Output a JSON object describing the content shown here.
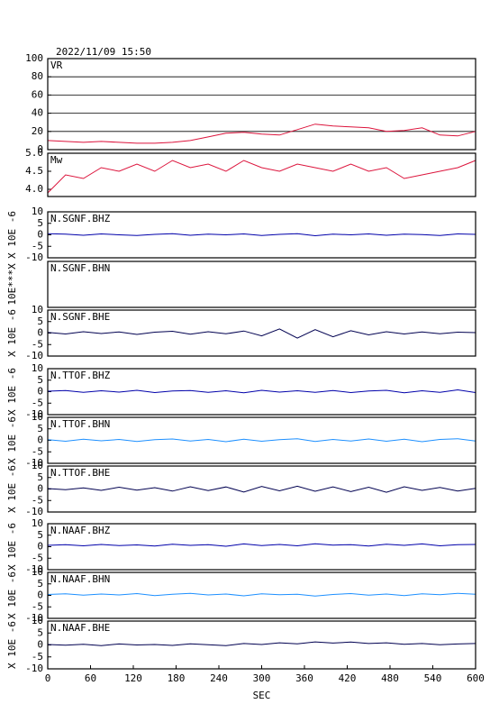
{
  "header": {
    "title": "2022/11/09  15:50"
  },
  "chart_data": [
    {
      "type": "line",
      "label": "VR",
      "ylim": [
        0,
        100
      ],
      "yticks": [
        0,
        20,
        40,
        60,
        80,
        100
      ],
      "grid": true,
      "color": "#dc143c",
      "xlim": [
        0,
        600
      ],
      "x": [
        0,
        25,
        50,
        75,
        100,
        125,
        150,
        175,
        200,
        225,
        250,
        275,
        300,
        325,
        350,
        375,
        400,
        425,
        450,
        475,
        500,
        525,
        550,
        575,
        600
      ],
      "values": [
        10,
        9,
        8,
        9,
        8,
        7,
        7,
        8,
        10,
        14,
        18,
        19,
        17,
        16,
        22,
        28,
        26,
        25,
        24,
        20,
        21,
        24,
        16,
        15,
        20
      ]
    },
    {
      "type": "line",
      "label": "Mw",
      "ylim": [
        3.8,
        5.0
      ],
      "yticks": [
        {
          "value": 4,
          "label": "4.0"
        },
        {
          "value": 4.5,
          "label": "4.5"
        },
        {
          "value": 5,
          "label": "5.0"
        }
      ],
      "grid": false,
      "color": "#dc143c",
      "xlim": [
        0,
        600
      ],
      "x": [
        0,
        25,
        50,
        75,
        100,
        125,
        150,
        175,
        200,
        225,
        250,
        275,
        300,
        325,
        350,
        375,
        400,
        425,
        450,
        475,
        500,
        525,
        550,
        575,
        600
      ],
      "values": [
        3.9,
        4.4,
        4.3,
        4.6,
        4.5,
        4.7,
        4.5,
        4.8,
        4.6,
        4.7,
        4.5,
        4.8,
        4.6,
        4.5,
        4.7,
        4.6,
        4.5,
        4.7,
        4.5,
        4.6,
        4.3,
        4.4,
        4.5,
        4.6,
        4.8
      ]
    },
    {
      "type": "line",
      "label": "N.SGNF.BHZ",
      "ylabel": "X 10E -6",
      "ylim": [
        -10,
        10
      ],
      "yticks": [
        -10,
        -5,
        0,
        5,
        10
      ],
      "color": "#0000aa",
      "xlim": [
        0,
        600
      ],
      "x": [
        0,
        25,
        50,
        75,
        100,
        125,
        150,
        175,
        200,
        225,
        250,
        275,
        300,
        325,
        350,
        375,
        400,
        425,
        450,
        475,
        500,
        525,
        550,
        575,
        600
      ],
      "values": [
        0.5,
        0.3,
        -0.2,
        0.4,
        0,
        -0.3,
        0.2,
        0.5,
        -0.2,
        0.3,
        0,
        0.4,
        -0.3,
        0.2,
        0.5,
        -0.4,
        0.3,
        0,
        0.4,
        -0.2,
        0.3,
        0.1,
        -0.3,
        0.4,
        0.2
      ]
    },
    {
      "type": "line",
      "label": "N.SGNF.BHN",
      "ylabel": "10E***X",
      "xlim": [
        0,
        600
      ]
    },
    {
      "type": "line",
      "label": "N.SGNF.BHE",
      "ylabel": "X 10E -6",
      "ylim": [
        -10,
        10
      ],
      "yticks": [
        -10,
        -5,
        0,
        5,
        10
      ],
      "color": "#000050",
      "xlim": [
        0,
        600
      ],
      "x": [
        0,
        25,
        50,
        75,
        100,
        125,
        150,
        175,
        200,
        225,
        250,
        275,
        300,
        325,
        350,
        375,
        400,
        425,
        450,
        475,
        500,
        525,
        550,
        575,
        600
      ],
      "values": [
        0.3,
        -0.4,
        0.6,
        -0.2,
        0.5,
        -0.6,
        0.4,
        0.8,
        -0.5,
        0.6,
        -0.3,
        0.9,
        -1.2,
        1.8,
        -2.2,
        1.5,
        -1.6,
        1.0,
        -0.8,
        0.6,
        -0.4,
        0.5,
        -0.3,
        0.4,
        0.2
      ]
    },
    {
      "type": "line",
      "label": "N.TTOF.BHZ",
      "ylabel": "X 10E -6",
      "ylim": [
        -10,
        10
      ],
      "yticks": [
        -10,
        -5,
        0,
        5,
        10
      ],
      "color": "#0000aa",
      "xlim": [
        0,
        600
      ],
      "x": [
        0,
        25,
        50,
        75,
        100,
        125,
        150,
        175,
        200,
        225,
        250,
        275,
        300,
        325,
        350,
        375,
        400,
        425,
        450,
        475,
        500,
        525,
        550,
        575,
        600
      ],
      "values": [
        0.2,
        0.5,
        -0.3,
        0.4,
        -0.2,
        0.6,
        -0.4,
        0.3,
        0.5,
        -0.3,
        0.4,
        -0.5,
        0.6,
        -0.2,
        0.4,
        -0.3,
        0.5,
        -0.4,
        0.3,
        0.6,
        -0.5,
        0.4,
        -0.3,
        0.8,
        -0.4
      ]
    },
    {
      "type": "line",
      "label": "N.TTOF.BHN",
      "ylabel": "X 10E -6",
      "ylim": [
        -10,
        10
      ],
      "yticks": [
        -10,
        -5,
        0,
        5,
        10
      ],
      "color": "#1e90ff",
      "xlim": [
        0,
        600
      ],
      "x": [
        0,
        25,
        50,
        75,
        100,
        125,
        150,
        175,
        200,
        225,
        250,
        275,
        300,
        325,
        350,
        375,
        400,
        425,
        450,
        475,
        500,
        525,
        550,
        575,
        600
      ],
      "values": [
        0.3,
        -0.4,
        0.5,
        -0.2,
        0.4,
        -0.5,
        0.3,
        0.6,
        -0.3,
        0.4,
        -0.6,
        0.5,
        -0.4,
        0.3,
        0.7,
        -0.5,
        0.4,
        -0.3,
        0.6,
        -0.4,
        0.5,
        -0.6,
        0.4,
        0.7,
        -0.3
      ]
    },
    {
      "type": "line",
      "label": "N.TTOF.BHE",
      "ylabel": "X 10E -6",
      "ylim": [
        -10,
        10
      ],
      "yticks": [
        -10,
        -5,
        0,
        5,
        10
      ],
      "color": "#000050",
      "xlim": [
        0,
        600
      ],
      "x": [
        0,
        25,
        50,
        75,
        100,
        125,
        150,
        175,
        200,
        225,
        250,
        275,
        300,
        325,
        350,
        375,
        400,
        425,
        450,
        475,
        500,
        525,
        550,
        575,
        600
      ],
      "values": [
        0.2,
        -0.3,
        0.5,
        -0.6,
        0.8,
        -0.5,
        0.6,
        -0.9,
        1.0,
        -0.7,
        0.9,
        -1.3,
        1.1,
        -0.8,
        1.2,
        -1.0,
        0.9,
        -1.1,
        0.8,
        -1.4,
        1.0,
        -0.6,
        0.7,
        -0.9,
        0.3
      ]
    },
    {
      "type": "line",
      "label": "N.NAAF.BHZ",
      "ylabel": "X 10E -6",
      "ylim": [
        -10,
        10
      ],
      "yticks": [
        -10,
        -5,
        0,
        5,
        10
      ],
      "color": "#0000aa",
      "xlim": [
        0,
        600
      ],
      "x": [
        0,
        25,
        50,
        75,
        100,
        125,
        150,
        175,
        200,
        225,
        250,
        275,
        300,
        325,
        350,
        375,
        400,
        425,
        450,
        475,
        500,
        525,
        550,
        575,
        600
      ],
      "values": [
        0.6,
        0.9,
        0.4,
        1.0,
        0.5,
        0.8,
        0.3,
        1.1,
        0.6,
        0.9,
        0.2,
        1.2,
        0.5,
        1.0,
        0.4,
        1.3,
        0.7,
        0.9,
        0.3,
        1.1,
        0.6,
        1.2,
        0.4,
        0.9,
        1.0
      ]
    },
    {
      "type": "line",
      "label": "N.NAAF.BHN",
      "ylabel": "X 10E -6",
      "ylim": [
        -10,
        10
      ],
      "yticks": [
        -10,
        -5,
        0,
        5,
        10
      ],
      "color": "#1e90ff",
      "xlim": [
        0,
        600
      ],
      "x": [
        0,
        25,
        50,
        75,
        100,
        125,
        150,
        175,
        200,
        225,
        250,
        275,
        300,
        325,
        350,
        375,
        400,
        425,
        450,
        475,
        500,
        525,
        550,
        575,
        600
      ],
      "values": [
        0.4,
        0.7,
        0.1,
        0.6,
        0.2,
        0.8,
        -0.1,
        0.5,
        0.9,
        0.2,
        0.6,
        -0.2,
        0.7,
        0.3,
        0.5,
        -0.3,
        0.4,
        0.8,
        0.1,
        0.6,
        -0.1,
        0.7,
        0.3,
        0.9,
        0.5
      ]
    },
    {
      "type": "line",
      "label": "N.NAAF.BHE",
      "ylabel": "X 10E -6",
      "ylim": [
        -10,
        10
      ],
      "yticks": [
        -10,
        -5,
        0,
        5,
        10
      ],
      "color": "#000050",
      "xlim": [
        0,
        600
      ],
      "xticks": [
        0,
        60,
        120,
        180,
        240,
        300,
        360,
        420,
        480,
        540,
        600
      ],
      "xlabel": "SEC",
      "x": [
        0,
        25,
        50,
        75,
        100,
        125,
        150,
        175,
        200,
        225,
        250,
        275,
        300,
        325,
        350,
        375,
        400,
        425,
        450,
        475,
        500,
        525,
        550,
        575,
        600
      ],
      "values": [
        0.2,
        -0.1,
        0.3,
        -0.3,
        0.4,
        0,
        0.2,
        -0.2,
        0.5,
        0.1,
        -0.3,
        0.6,
        0.2,
        0.9,
        0.5,
        1.3,
        0.8,
        1.2,
        0.6,
        0.9,
        0.3,
        0.6,
        0.1,
        0.4,
        0.6
      ]
    }
  ]
}
